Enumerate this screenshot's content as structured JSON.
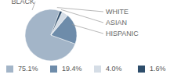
{
  "chart_data": {
    "type": "pie",
    "categories": [
      "BLACK",
      "HISPANIC",
      "ASIAN",
      "WHITE"
    ],
    "values": [
      75.1,
      19.4,
      4.0,
      1.6
    ],
    "value_labels": [
      "75.1%",
      "19.4%",
      "4.0%",
      "1.6%"
    ],
    "colors": [
      "#a3b5c8",
      "#6e8caa",
      "#d5dde6",
      "#2e4d6b"
    ],
    "legend": "bottom"
  }
}
